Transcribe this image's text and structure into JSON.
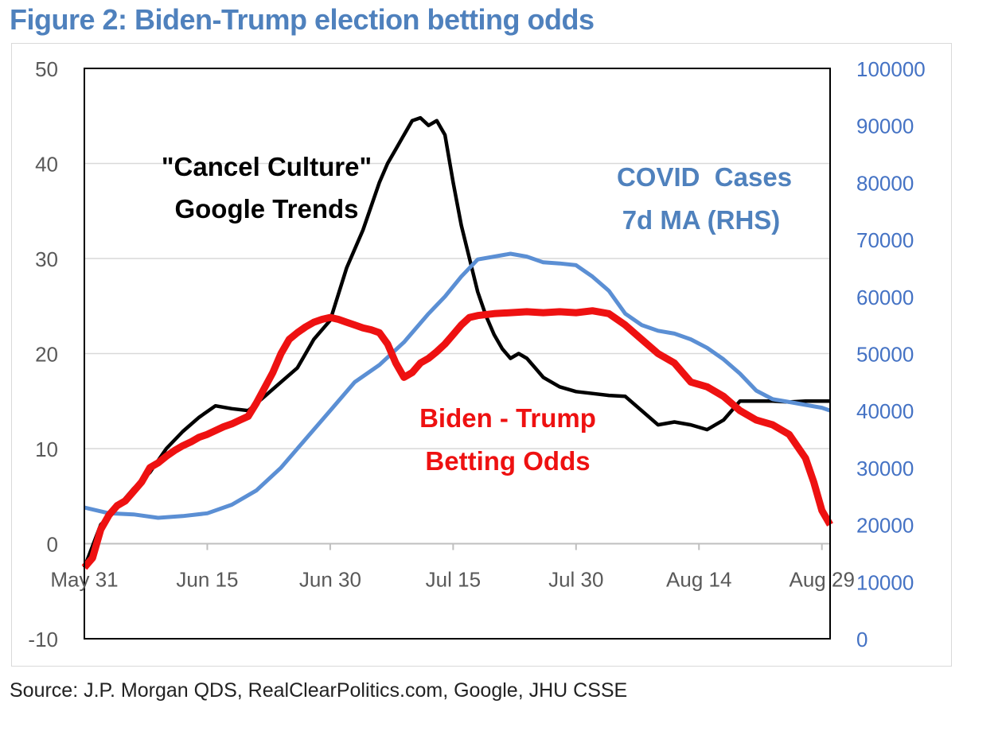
{
  "title": "Figure 2: Biden-Trump election betting odds",
  "source": "Source: J.P. Morgan QDS, RealClearPolitics.com, Google, JHU CSSE",
  "colors": {
    "title": "#4f81bd",
    "cancel_culture": "#000000",
    "covid": "#5b8fd4",
    "betting": "#ee1111",
    "grid": "#d9d9d9",
    "axis": "#000000",
    "right_ticks": "#4472c4"
  },
  "chart_data": {
    "type": "line",
    "title": "Figure 2: Biden-Trump election betting odds",
    "x_tick_labels": [
      "May 31",
      "Jun 15",
      "Jun 30",
      "Jul 15",
      "Jul 30",
      "Aug 14",
      "Aug 29"
    ],
    "x_tick_days": [
      0,
      15,
      30,
      45,
      60,
      75,
      90
    ],
    "x_range_days": [
      0,
      91
    ],
    "y_left_range": [
      -10,
      50
    ],
    "y_left_ticks": [
      "50",
      "40",
      "30",
      "20",
      "10",
      "0",
      "-10"
    ],
    "y_right_range": [
      0,
      100000
    ],
    "y_right_ticks": [
      "100000",
      "90000",
      "80000",
      "70000",
      "60000",
      "50000",
      "40000",
      "30000",
      "20000",
      "10000",
      "0"
    ],
    "grid": true,
    "annotations": {
      "cancel_line1": "\"Cancel Culture\"",
      "cancel_line2": "Google Trends",
      "covid_line1": "COVID  Cases",
      "covid_line2": "7d MA (RHS)",
      "betting_line1": "Biden - Trump",
      "betting_line2": "Betting Odds"
    },
    "series": [
      {
        "name": "\"Cancel Culture\" Google Trends",
        "axis": "left",
        "color": "#000000",
        "x": [
          0,
          2,
          4,
          6,
          8,
          10,
          12,
          14,
          16,
          18,
          20,
          22,
          24,
          26,
          28,
          30,
          32,
          34,
          36,
          37,
          38,
          39,
          40,
          41,
          42,
          43,
          44,
          45,
          46,
          47,
          48,
          49,
          50,
          51,
          52,
          53,
          54,
          55,
          56,
          58,
          60,
          62,
          64,
          66,
          68,
          70,
          72,
          74,
          76,
          78,
          80,
          82,
          84,
          86,
          88,
          89,
          90,
          91
        ],
        "values": [
          -2.5,
          2.0,
          3.8,
          5.8,
          7.5,
          10.0,
          11.8,
          13.3,
          14.5,
          14.2,
          14.0,
          15.5,
          17.0,
          18.5,
          21.5,
          23.5,
          29.0,
          33.0,
          38.0,
          40.0,
          41.5,
          43.0,
          44.5,
          44.8,
          44.0,
          44.5,
          43.0,
          38.0,
          33.5,
          30.0,
          26.5,
          24.0,
          22.0,
          20.5,
          19.5,
          20.0,
          19.5,
          18.5,
          17.5,
          16.5,
          16.0,
          15.8,
          15.6,
          15.5,
          14.0,
          12.5,
          12.8,
          12.5,
          12.0,
          13.0,
          15.0,
          15.0,
          15.0,
          14.9,
          15.0,
          15.0,
          15.0,
          15.0
        ]
      },
      {
        "name": "COVID Cases 7d MA (RHS)",
        "axis": "right",
        "color": "#5b8fd4",
        "x": [
          0,
          3,
          6,
          9,
          12,
          15,
          18,
          21,
          24,
          27,
          30,
          33,
          36,
          39,
          42,
          44,
          46,
          48,
          50,
          52,
          54,
          56,
          58,
          60,
          62,
          64,
          66,
          68,
          70,
          72,
          74,
          76,
          78,
          80,
          82,
          84,
          86,
          88,
          90,
          91
        ],
        "values": [
          23000,
          22000,
          21800,
          21200,
          21500,
          22000,
          23500,
          26000,
          30000,
          35000,
          40000,
          45000,
          48000,
          52000,
          57000,
          60000,
          63500,
          66500,
          67000,
          67500,
          67000,
          66000,
          65800,
          65500,
          63500,
          61000,
          57000,
          55000,
          54000,
          53500,
          52500,
          51000,
          49000,
          46500,
          43500,
          42000,
          41500,
          41000,
          40500,
          40000
        ]
      },
      {
        "name": "Biden - Trump Betting Odds",
        "axis": "left",
        "color": "#ee1111",
        "x": [
          0,
          1,
          2,
          3,
          4,
          5,
          6,
          7,
          8,
          9,
          10,
          11,
          12,
          13,
          14,
          15,
          16,
          17,
          18,
          19,
          20,
          21,
          22,
          23,
          24,
          25,
          26,
          27,
          28,
          29,
          30,
          31,
          32,
          33,
          34,
          35,
          36,
          37,
          38,
          39,
          40,
          41,
          42,
          43,
          44,
          45,
          46,
          47,
          48,
          50,
          52,
          54,
          56,
          58,
          60,
          62,
          64,
          66,
          68,
          70,
          72,
          74,
          76,
          78,
          80,
          82,
          84,
          86,
          88,
          89,
          90,
          91
        ],
        "values": [
          -2.5,
          -1.5,
          1.5,
          3.0,
          4.0,
          4.5,
          5.5,
          6.5,
          8.0,
          8.5,
          9.2,
          9.8,
          10.3,
          10.7,
          11.2,
          11.5,
          11.9,
          12.3,
          12.6,
          13.0,
          13.4,
          14.8,
          16.4,
          18.0,
          20.0,
          21.5,
          22.2,
          22.8,
          23.3,
          23.6,
          23.8,
          23.6,
          23.3,
          23.0,
          22.7,
          22.5,
          22.2,
          21.0,
          19.0,
          17.5,
          18.0,
          19.0,
          19.5,
          20.2,
          21.0,
          22.0,
          23.0,
          23.8,
          24.0,
          24.2,
          24.3,
          24.4,
          24.3,
          24.4,
          24.3,
          24.5,
          24.2,
          23.0,
          21.5,
          20.0,
          19.0,
          17.0,
          16.5,
          15.5,
          14.0,
          13.0,
          12.5,
          11.5,
          9.0,
          6.5,
          3.5,
          2.0
        ]
      }
    ]
  }
}
